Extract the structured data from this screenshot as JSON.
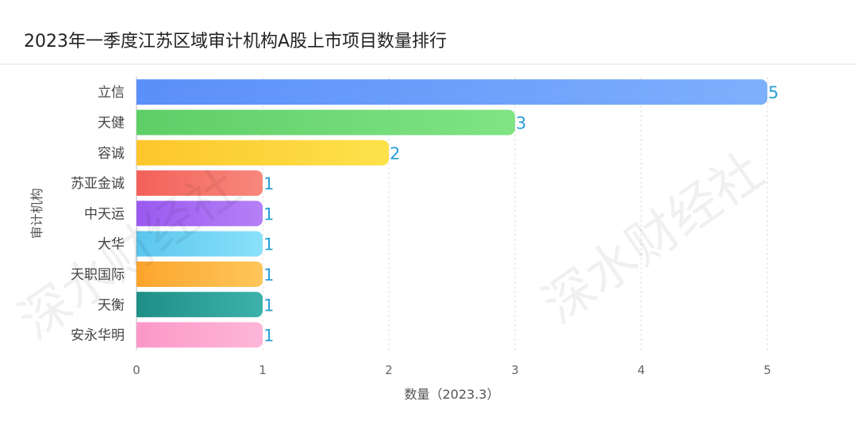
{
  "title": "2023年一季度江苏区域审计机构A股上市项目数量排行",
  "watermark": "深水财经社",
  "chart_data": {
    "type": "bar",
    "orientation": "horizontal",
    "title": "2023年一季度江苏区域审计机构A股上市项目数量排行",
    "xlabel": "数量（2023.3）",
    "ylabel": "审计机构",
    "xlim": [
      0,
      5
    ],
    "xticks": [
      "0",
      "1",
      "2",
      "3",
      "4",
      "5"
    ],
    "grid": "vertical-dashed",
    "categories": [
      "立信",
      "天健",
      "容诚",
      "苏亚金诚",
      "中天运",
      "大华",
      "天职国际",
      "天衡",
      "安永华明"
    ],
    "values": [
      5,
      3,
      2,
      1,
      1,
      1,
      1,
      1,
      1
    ],
    "colors": [
      [
        "#5b8ff9",
        "#7db0fc"
      ],
      [
        "#5fce67",
        "#80e483"
      ],
      [
        "#fcc62c",
        "#fde24a"
      ],
      [
        "#f3625a",
        "#f8887c"
      ],
      [
        "#9a5af0",
        "#b680f7"
      ],
      [
        "#5cc6ee",
        "#8ae1fa"
      ],
      [
        "#fca52d",
        "#fdc65a"
      ],
      [
        "#1f8f87",
        "#3db2aa"
      ],
      [
        "#fb98c7",
        "#fdb6d9"
      ]
    ],
    "label_color": "#2a9fd6"
  }
}
